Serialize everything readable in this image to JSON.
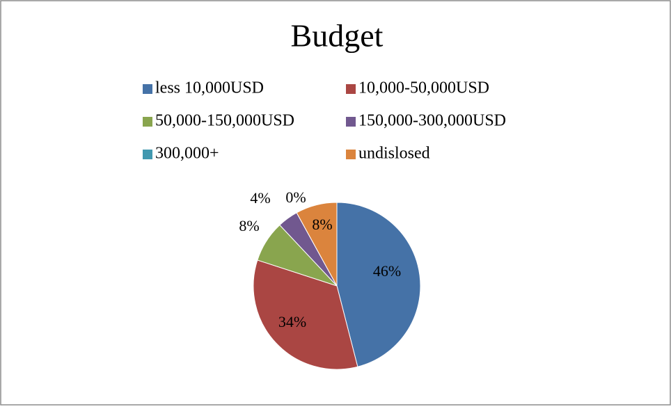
{
  "chart_data": {
    "type": "pie",
    "title": "Budget",
    "categories": [
      "less 10,000USD",
      "10,000-50,000USD",
      "50,000-150,000USD",
      "150,000-300,000USD",
      "300,000+",
      "undislosed"
    ],
    "values": [
      46,
      34,
      8,
      4,
      0,
      8
    ],
    "value_labels": [
      "46%",
      "34%",
      "8%",
      "4%",
      "0%",
      "8%"
    ],
    "colors": [
      "#4572a7",
      "#aa4643",
      "#89a54e",
      "#71588f",
      "#4198af",
      "#db843d"
    ],
    "legend": "top"
  }
}
